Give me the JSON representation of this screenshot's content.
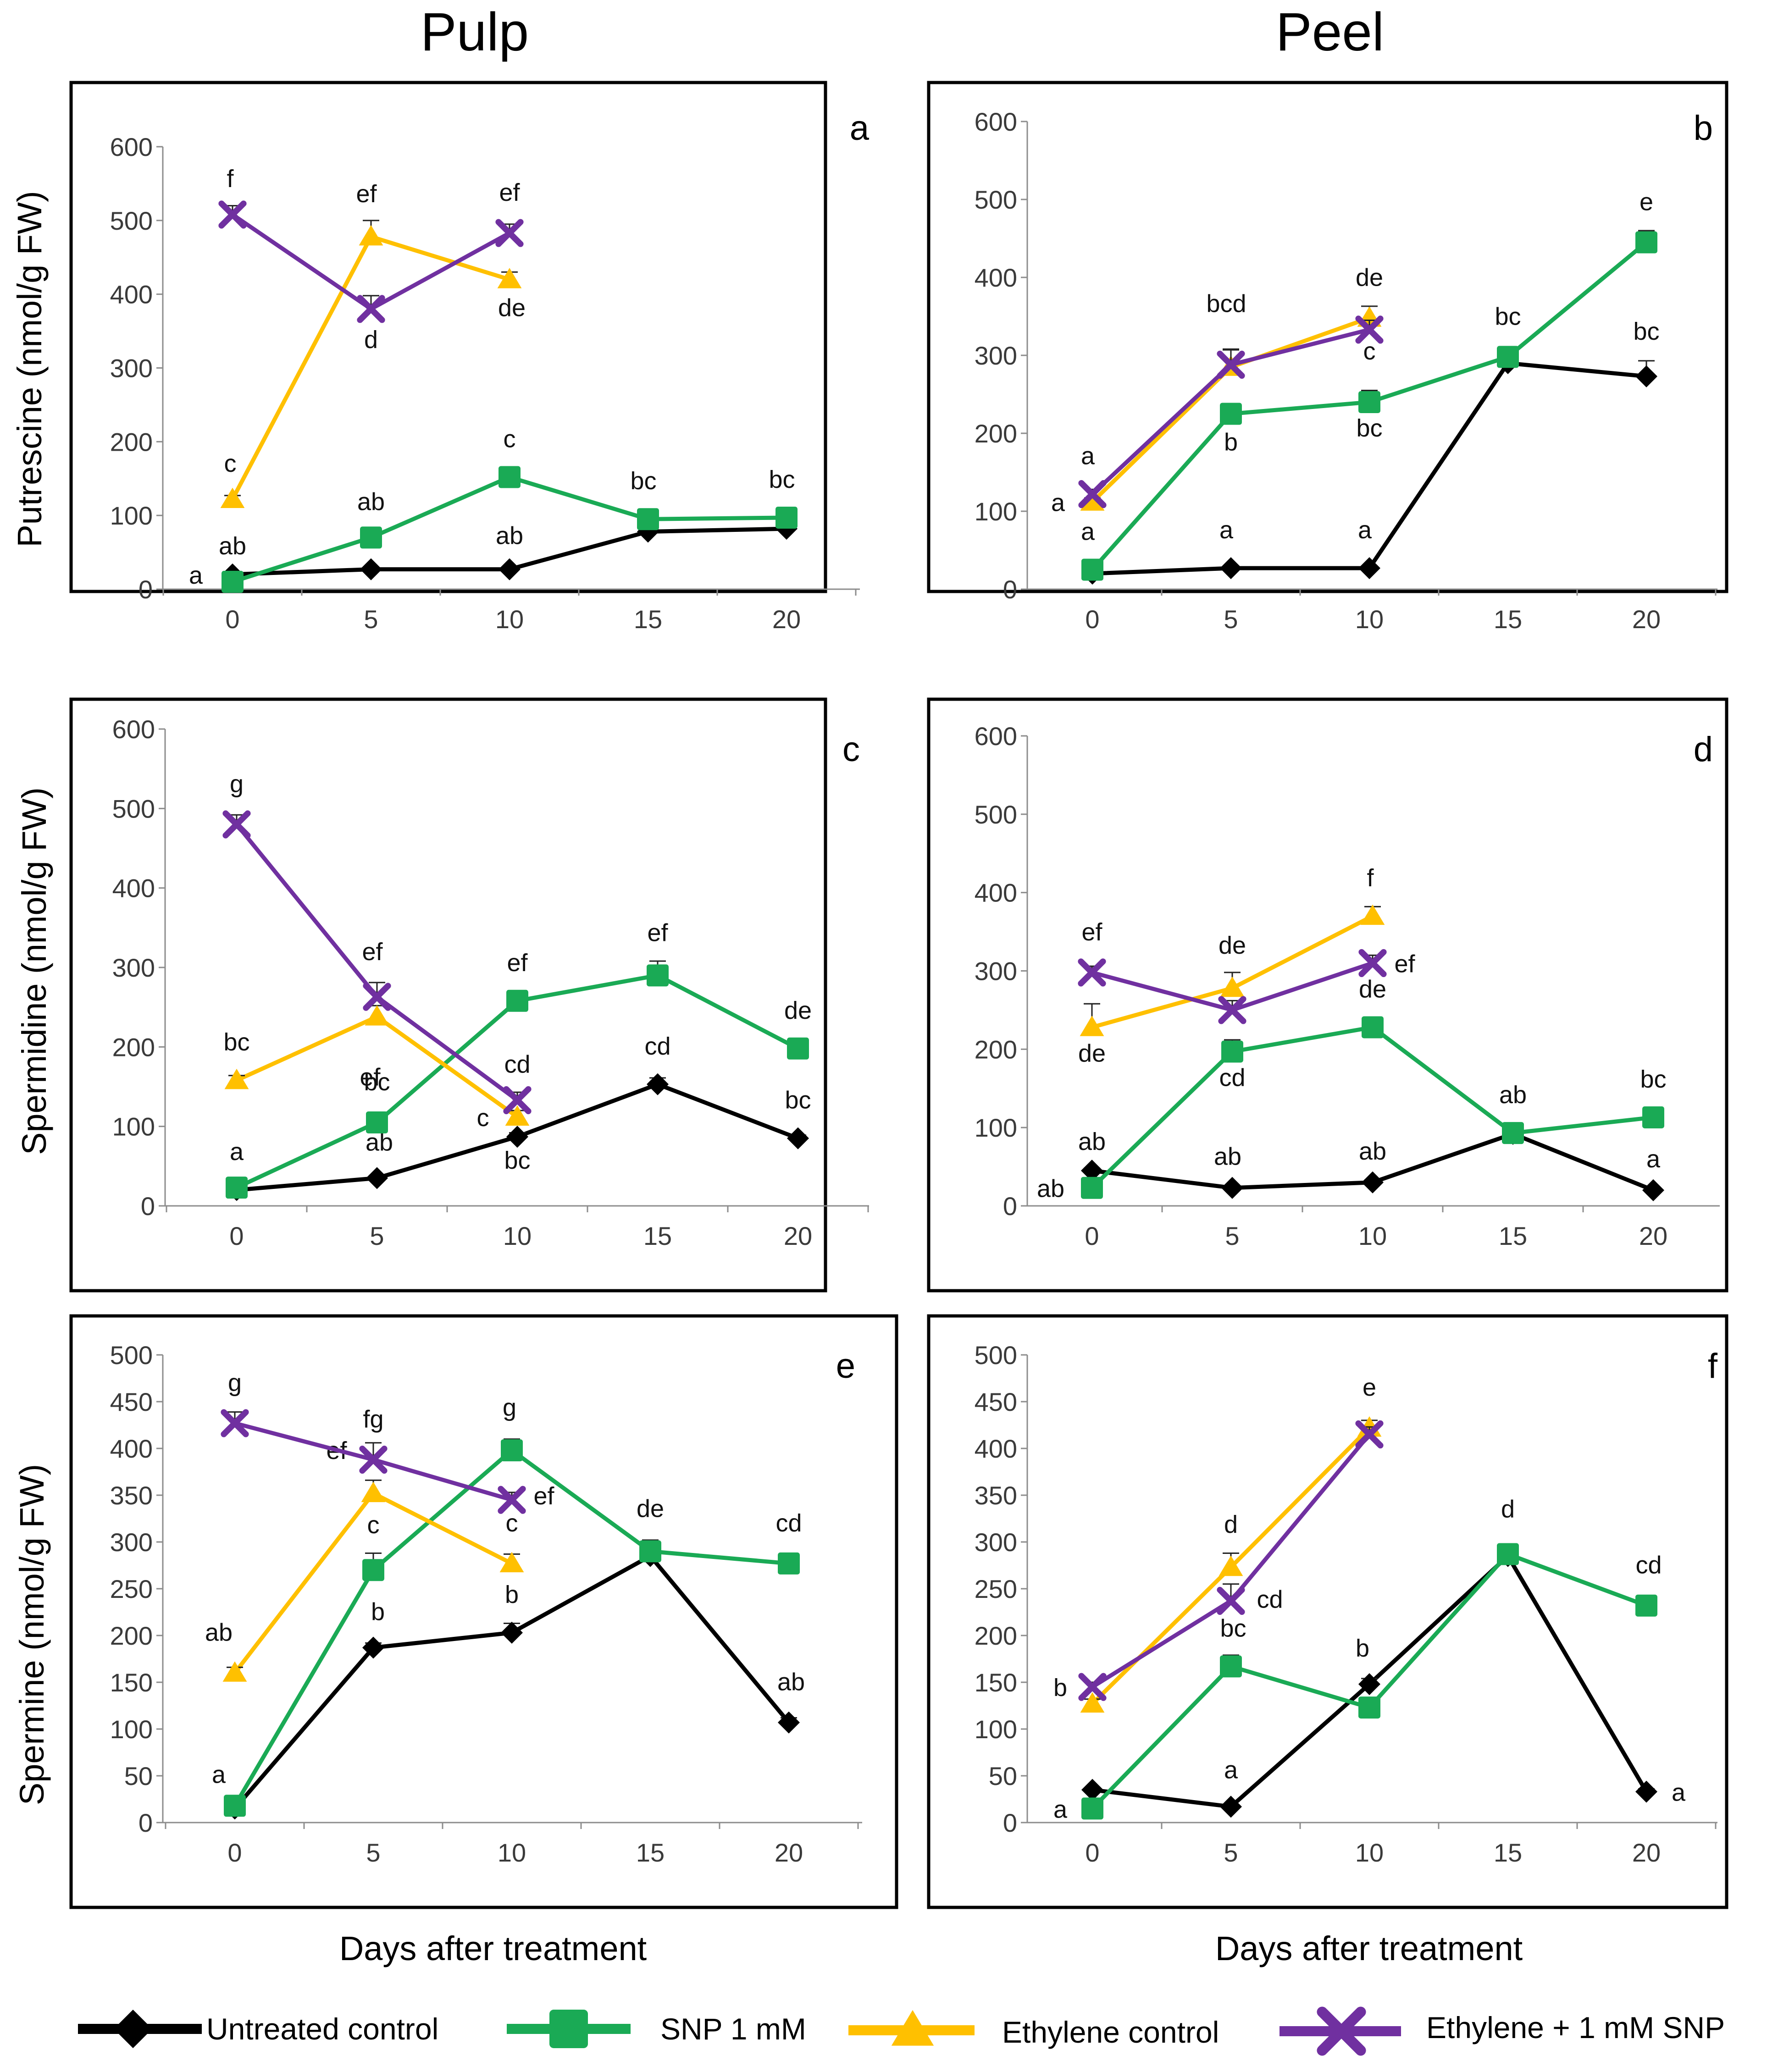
{
  "column_titles": [
    "Pulp",
    "Peel"
  ],
  "x_axis_label": "Days after treatment",
  "legend": [
    {
      "key": "control",
      "label": "Untreated control",
      "color": "#000000",
      "marker": "diamond"
    },
    {
      "key": "snp",
      "label": "SNP 1 mM",
      "color": "#1aaa55",
      "marker": "square"
    },
    {
      "key": "eth",
      "label": "Ethylene control",
      "color": "#ffc000",
      "marker": "triangle"
    },
    {
      "key": "ethsnp",
      "label": "Ethylene + 1 mM SNP",
      "color": "#7030a0",
      "marker": "x"
    }
  ],
  "chart_data": [
    {
      "panel": "a",
      "type": "line",
      "tissue": "Pulp",
      "ylabel": "Putrescine (nmol/g FW)",
      "ylim": [
        0,
        600
      ],
      "yticks": [
        0,
        100,
        200,
        300,
        400,
        500,
        600
      ],
      "x": [
        0,
        5,
        10,
        15,
        20
      ],
      "series": [
        {
          "key": "control",
          "values": [
            20,
            27,
            27,
            78,
            82
          ],
          "errors": [
            2,
            2,
            2,
            3,
            3
          ],
          "labels": [
            "a",
            "",
            "ab",
            "",
            ""
          ]
        },
        {
          "key": "snp",
          "values": [
            10,
            70,
            152,
            95,
            97
          ],
          "errors": [
            2,
            4,
            5,
            4,
            4
          ],
          "labels": [
            "ab",
            "ab",
            "c",
            "bc",
            "bc"
          ]
        },
        {
          "key": "eth",
          "values": [
            122,
            478,
            420,
            null,
            null
          ],
          "errors": [
            5,
            22,
            10,
            0,
            0
          ],
          "labels": [
            "c",
            "ef",
            "de",
            "",
            ""
          ]
        },
        {
          "key": "ethsnp",
          "values": [
            508,
            380,
            483,
            null,
            null
          ],
          "errors": [
            12,
            18,
            12,
            0,
            0
          ],
          "labels": [
            "f",
            "d",
            "ef",
            "",
            ""
          ]
        }
      ]
    },
    {
      "panel": "b",
      "type": "line",
      "tissue": "Peel",
      "ylabel": "",
      "ylim": [
        0,
        600
      ],
      "yticks": [
        0,
        100,
        200,
        300,
        400,
        500,
        600
      ],
      "x": [
        0,
        5,
        10,
        15,
        20
      ],
      "series": [
        {
          "key": "control",
          "values": [
            20,
            27,
            27,
            290,
            273
          ],
          "errors": [
            2,
            2,
            2,
            5,
            20
          ],
          "labels": [
            "",
            "a",
            "a",
            "",
            "bc"
          ]
        },
        {
          "key": "snp",
          "values": [
            25,
            225,
            240,
            298,
            445
          ],
          "errors": [
            3,
            8,
            15,
            8,
            15
          ],
          "labels": [
            "a",
            "b",
            "bc",
            "bc",
            "e"
          ]
        },
        {
          "key": "eth",
          "values": [
            112,
            285,
            348,
            null,
            null
          ],
          "errors": [
            5,
            22,
            15,
            0,
            0
          ],
          "labels": [
            "a",
            "",
            "de",
            "",
            ""
          ]
        },
        {
          "key": "ethsnp",
          "values": [
            122,
            288,
            333,
            null,
            null
          ],
          "errors": [
            6,
            20,
            12,
            0,
            0
          ],
          "labels": [
            "a",
            "bcd",
            "c",
            "",
            ""
          ]
        }
      ]
    },
    {
      "panel": "c",
      "type": "line",
      "tissue": "Pulp",
      "ylabel": "Spermidine (nmol/g FW)",
      "ylim": [
        0,
        600
      ],
      "yticks": [
        0,
        100,
        200,
        300,
        400,
        500,
        600
      ],
      "x": [
        0,
        5,
        10,
        15,
        20
      ],
      "series": [
        {
          "key": "control",
          "values": [
            20,
            35,
            87,
            153,
            85
          ],
          "errors": [
            2,
            3,
            5,
            8,
            4
          ],
          "labels": [
            "",
            "ab",
            "bc",
            "cd",
            "bc"
          ]
        },
        {
          "key": "snp",
          "values": [
            23,
            105,
            258,
            290,
            198
          ],
          "errors": [
            3,
            6,
            8,
            18,
            8
          ],
          "labels": [
            "a",
            "bc",
            "ef",
            "ef",
            "de"
          ]
        },
        {
          "key": "eth",
          "values": [
            158,
            238,
            112,
            null,
            null
          ],
          "errors": [
            6,
            14,
            8,
            0,
            0
          ],
          "labels": [
            "bc",
            "ef",
            "c",
            "",
            ""
          ]
        },
        {
          "key": "ethsnp",
          "values": [
            480,
            263,
            133,
            null,
            null
          ],
          "errors": [
            12,
            18,
            10,
            0,
            0
          ],
          "labels": [
            "g",
            "ef",
            "cd",
            "",
            ""
          ]
        }
      ]
    },
    {
      "panel": "d",
      "type": "line",
      "tissue": "Peel",
      "ylabel": "",
      "ylim": [
        0,
        600
      ],
      "yticks": [
        0,
        100,
        200,
        300,
        400,
        500,
        600
      ],
      "x": [
        0,
        5,
        10,
        15,
        20
      ],
      "series": [
        {
          "key": "control",
          "values": [
            45,
            23,
            30,
            92,
            20
          ],
          "errors": [
            3,
            2,
            3,
            5,
            2
          ],
          "labels": [
            "ab",
            "ab",
            "ab",
            "",
            "a"
          ]
        },
        {
          "key": "snp",
          "values": [
            23,
            197,
            228,
            93,
            113
          ],
          "errors": [
            3,
            15,
            12,
            6,
            6
          ],
          "labels": [
            "ab",
            "cd",
            "de",
            "ab",
            "bc"
          ]
        },
        {
          "key": "eth",
          "values": [
            228,
            278,
            370,
            null,
            null
          ],
          "errors": [
            30,
            20,
            12,
            0,
            0
          ],
          "labels": [
            "de",
            "de",
            "f",
            "",
            ""
          ]
        },
        {
          "key": "ethsnp",
          "values": [
            298,
            250,
            310,
            null,
            null
          ],
          "errors": [
            8,
            12,
            10,
            0,
            0
          ],
          "labels": [
            "ef",
            "",
            "ef",
            "",
            ""
          ]
        }
      ]
    },
    {
      "panel": "e",
      "type": "line",
      "tissue": "Pulp",
      "ylabel": "Spermine (nmol/g FW)",
      "ylim": [
        0,
        500
      ],
      "yticks": [
        0,
        50,
        100,
        150,
        200,
        250,
        300,
        350,
        400,
        450,
        500
      ],
      "x": [
        0,
        5,
        10,
        15,
        20
      ],
      "series": [
        {
          "key": "control",
          "values": [
            15,
            187,
            203,
            285,
            107
          ],
          "errors": [
            2,
            5,
            10,
            12,
            5
          ],
          "labels": [
            "",
            "b",
            "b",
            "",
            "ab"
          ]
        },
        {
          "key": "snp",
          "values": [
            18,
            270,
            398,
            290,
            277
          ],
          "errors": [
            3,
            18,
            12,
            12,
            8
          ],
          "labels": [
            "a",
            "c",
            "g",
            "de",
            "cd"
          ]
        },
        {
          "key": "eth",
          "values": [
            160,
            352,
            277,
            null,
            null
          ],
          "errors": [
            6,
            14,
            10,
            0,
            0
          ],
          "labels": [
            "ab",
            "ef",
            "c",
            "",
            ""
          ]
        },
        {
          "key": "ethsnp",
          "values": [
            427,
            388,
            345,
            null,
            null
          ],
          "errors": [
            12,
            18,
            8,
            0,
            0
          ],
          "labels": [
            "g",
            "fg",
            "ef",
            "",
            ""
          ]
        }
      ]
    },
    {
      "panel": "f",
      "type": "line",
      "tissue": "Peel",
      "ylabel": "",
      "ylim": [
        0,
        500
      ],
      "yticks": [
        0,
        50,
        100,
        150,
        200,
        250,
        300,
        350,
        400,
        450,
        500
      ],
      "x": [
        0,
        5,
        10,
        15,
        20
      ],
      "series": [
        {
          "key": "control",
          "values": [
            35,
            17,
            148,
            285,
            33
          ],
          "errors": [
            2,
            2,
            6,
            12,
            3
          ],
          "labels": [
            "",
            "a",
            "b",
            "",
            "a"
          ]
        },
        {
          "key": "snp",
          "values": [
            15,
            167,
            123,
            287,
            232
          ],
          "errors": [
            3,
            12,
            8,
            10,
            8
          ],
          "labels": [
            "a",
            "bc",
            "",
            "d",
            "cd"
          ]
        },
        {
          "key": "eth",
          "values": [
            127,
            273,
            422,
            null,
            null
          ],
          "errors": [
            5,
            15,
            8,
            0,
            0
          ],
          "labels": [
            "",
            "d",
            "e",
            "",
            ""
          ]
        },
        {
          "key": "ethsnp",
          "values": [
            145,
            237,
            415,
            null,
            null
          ],
          "errors": [
            5,
            18,
            8,
            0,
            0
          ],
          "labels": [
            "b",
            "cd",
            "",
            "",
            ""
          ]
        }
      ]
    }
  ]
}
